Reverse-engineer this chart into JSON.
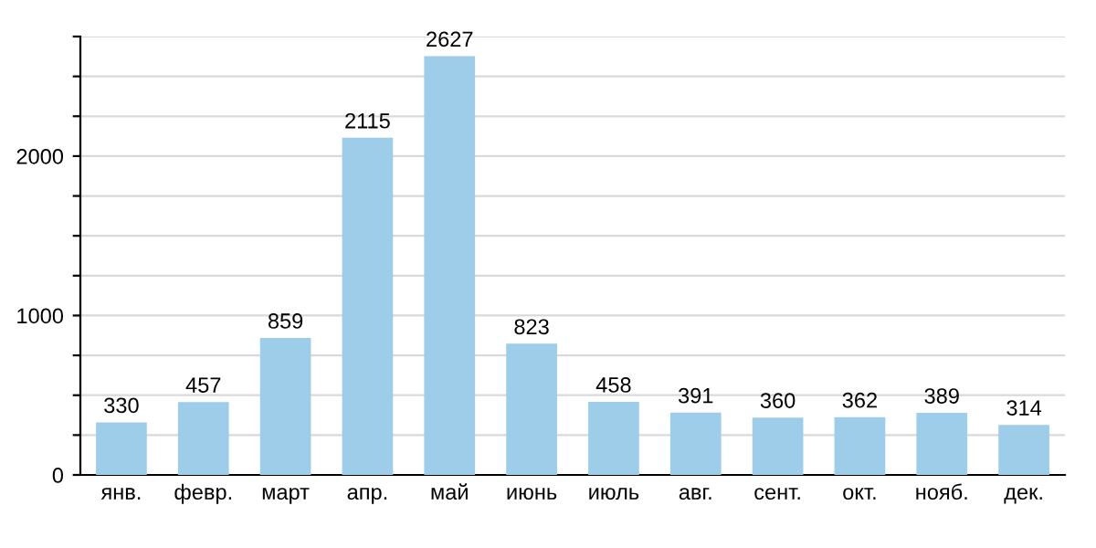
{
  "chart_data": {
    "type": "bar",
    "categories": [
      "янв.",
      "февр.",
      "март",
      "апр.",
      "май",
      "июнь",
      "июль",
      "авг.",
      "сент.",
      "окт.",
      "нояб.",
      "дек."
    ],
    "values": [
      330,
      457,
      859,
      2115,
      2627,
      823,
      458,
      391,
      360,
      362,
      389,
      314
    ],
    "color": "#9dcde8",
    "ylim": [
      0,
      2750
    ],
    "yticks": [
      0,
      {
        "value": 250,
        "label": null
      },
      {
        "value": 500,
        "label": null
      },
      {
        "value": 750,
        "label": null
      },
      1000,
      {
        "value": 1250,
        "label": null
      },
      {
        "value": 1500,
        "label": null
      },
      {
        "value": 1750,
        "label": null
      },
      2000,
      {
        "value": 2250,
        "label": null
      },
      {
        "value": 2500,
        "label": null
      },
      {
        "value": 2750,
        "label": null
      }
    ],
    "grid": "y",
    "data_labels": true
  }
}
